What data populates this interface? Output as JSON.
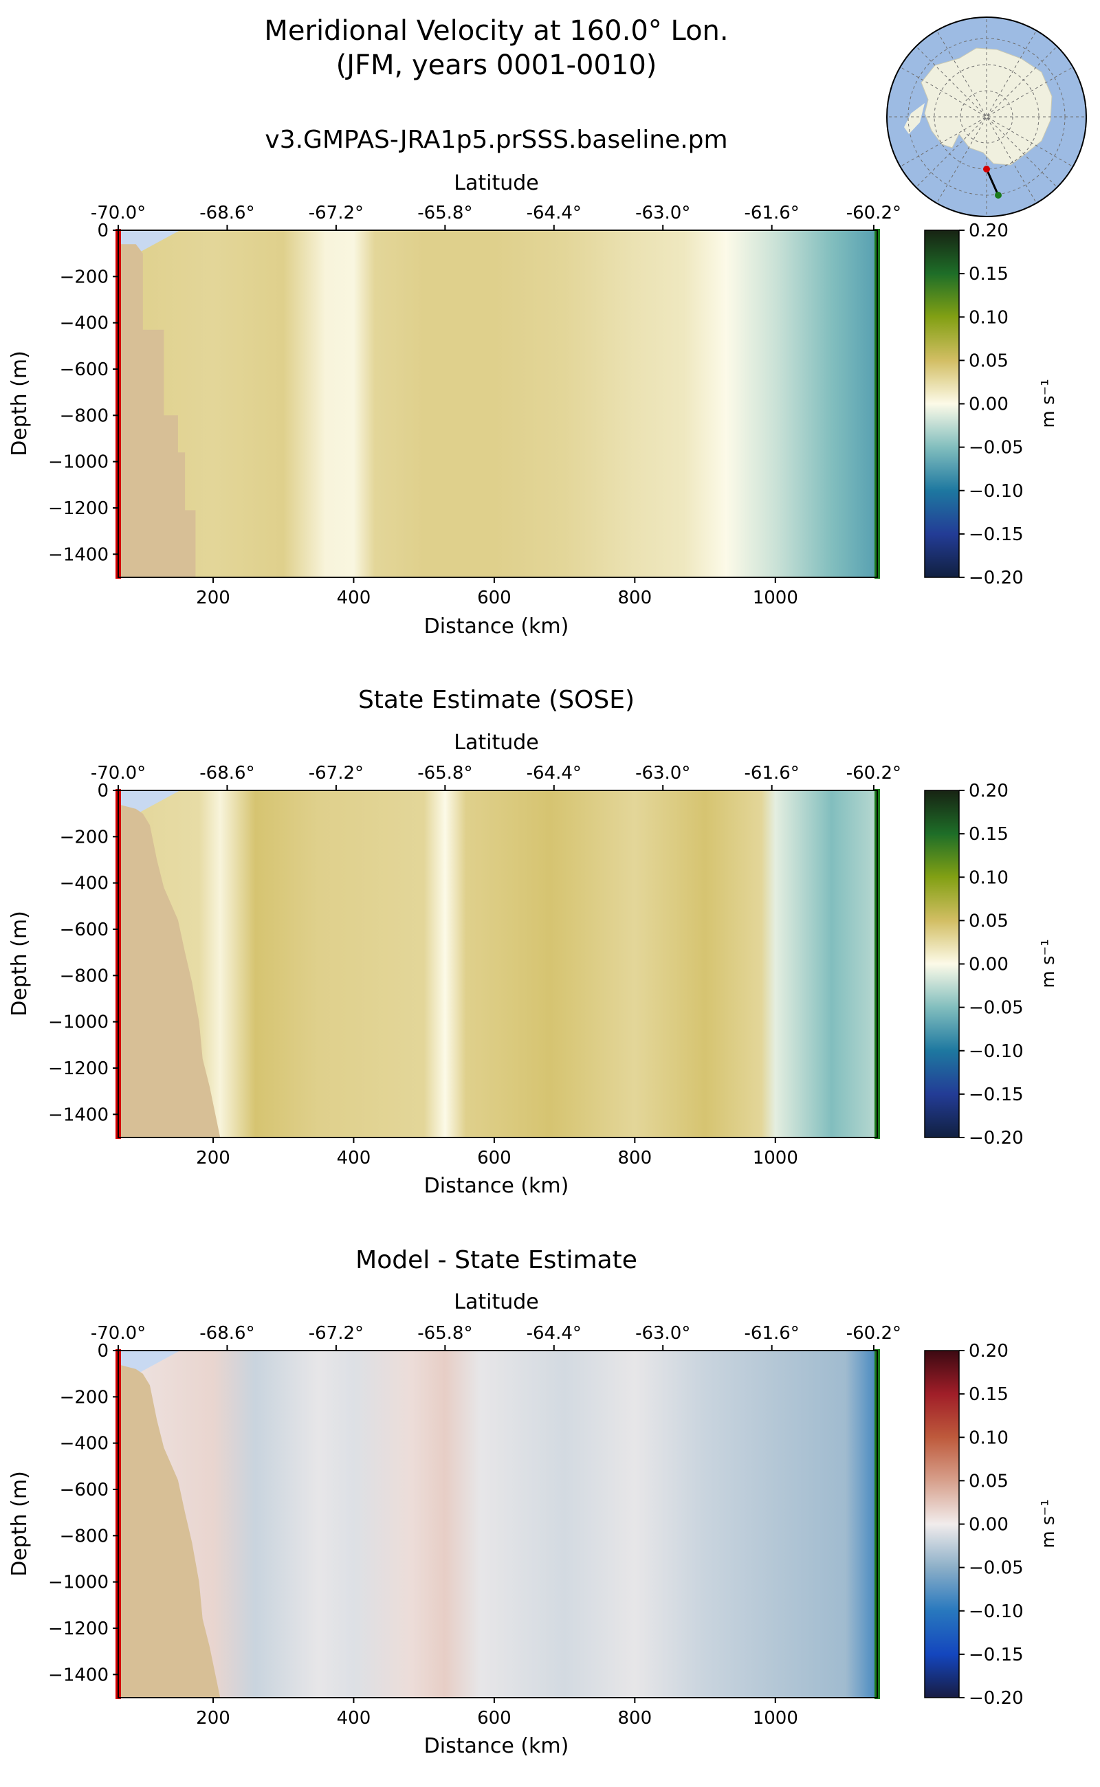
{
  "figure": {
    "title_line1": "Meridional Velocity at 160.0° Lon.",
    "title_line2": "(JFM, years 0001-0010)"
  },
  "colors": {
    "land": "#d7bf96",
    "ice": "#c8d9f1",
    "start_marker": "#d40000",
    "end_marker": "#1b7a1b",
    "ocean_map": "#9dbbe3",
    "continent_map": "#f0f0df"
  },
  "inset_map": {
    "description_icon": "antarctica-polar-map-icon",
    "section_start_color": "#d40000",
    "section_end_color": "#1b7a1b"
  },
  "chart_data": [
    {
      "type": "heatmap",
      "title": "v3.GMPAS-JRA1p5.prSSS.baseline.pm",
      "xlabel": "Distance (km)",
      "ylabel": "Depth (m)",
      "top_xlabel": "Latitude",
      "xlim": [
        65,
        1145
      ],
      "ylim": [
        -1500,
        0
      ],
      "x_ticks": [
        200,
        400,
        600,
        800,
        1000
      ],
      "y_ticks": [
        0,
        -200,
        -400,
        -600,
        -800,
        -1000,
        -1200,
        -1400
      ],
      "y_tick_labels": [
        "0",
        "−200",
        "−400",
        "−600",
        "−800",
        "−1000",
        "−1200",
        "−1400"
      ],
      "top_ticks_km": [
        65,
        220,
        375,
        530,
        685,
        840,
        995,
        1140
      ],
      "top_tick_labels": [
        "-70.0°",
        "-68.6°",
        "-67.2°",
        "-65.8°",
        "-64.4°",
        "-63.0°",
        "-61.6°",
        "-60.2°"
      ],
      "colorbar": {
        "label": "m s⁻¹",
        "range": [
          -0.2,
          0.2
        ],
        "ticks": [
          "0.20",
          "0.15",
          "0.10",
          "0.05",
          "0.00",
          "−0.05",
          "−0.10",
          "−0.15",
          "−0.20"
        ],
        "colormap": "delta"
      },
      "field_profile": {
        "km": [
          65,
          200,
          300,
          360,
          400,
          430,
          500,
          600,
          700,
          800,
          870,
          930,
          1000,
          1080,
          1140
        ],
        "velocity": [
          0.035,
          0.03,
          0.035,
          0.005,
          0.003,
          0.03,
          0.035,
          0.035,
          0.03,
          0.02,
          0.015,
          0.0,
          -0.02,
          -0.05,
          -0.07
        ]
      },
      "bathymetry": {
        "km": [
          65,
          90,
          100,
          100,
          130,
          130,
          150,
          150,
          160,
          160,
          175,
          175
        ],
        "depth": [
          -60,
          -60,
          -100,
          -430,
          -430,
          -800,
          -800,
          -960,
          -960,
          -1210,
          -1210,
          -1500
        ]
      }
    },
    {
      "type": "heatmap",
      "title": "State Estimate (SOSE)",
      "xlabel": "Distance (km)",
      "ylabel": "Depth (m)",
      "top_xlabel": "Latitude",
      "xlim": [
        65,
        1145
      ],
      "ylim": [
        -1500,
        0
      ],
      "x_ticks": [
        200,
        400,
        600,
        800,
        1000
      ],
      "y_ticks": [
        0,
        -200,
        -400,
        -600,
        -800,
        -1000,
        -1200,
        -1400
      ],
      "y_tick_labels": [
        "0",
        "−200",
        "−400",
        "−600",
        "−800",
        "−1000",
        "−1200",
        "−1400"
      ],
      "top_ticks_km": [
        65,
        220,
        375,
        530,
        685,
        840,
        995,
        1140
      ],
      "top_tick_labels": [
        "-70.0°",
        "-68.6°",
        "-67.2°",
        "-65.8°",
        "-64.4°",
        "-63.0°",
        "-61.6°",
        "-60.2°"
      ],
      "colorbar": {
        "label": "m s⁻¹",
        "range": [
          -0.2,
          0.2
        ],
        "ticks": [
          "0.20",
          "0.15",
          "0.10",
          "0.05",
          "0.00",
          "−0.05",
          "−0.10",
          "−0.15",
          "−0.20"
        ],
        "colormap": "delta"
      },
      "field_profile": {
        "km": [
          65,
          180,
          210,
          260,
          350,
          500,
          530,
          560,
          680,
          800,
          900,
          980,
          1000,
          1080,
          1140
        ],
        "velocity": [
          0.03,
          0.025,
          0.005,
          0.045,
          0.035,
          0.03,
          0.0,
          0.035,
          0.045,
          0.03,
          0.045,
          0.03,
          -0.01,
          -0.05,
          -0.03
        ]
      },
      "bathymetry": {
        "km": [
          65,
          90,
          100,
          110,
          120,
          130,
          150,
          160,
          170,
          180,
          185,
          195,
          210
        ],
        "depth": [
          -60,
          -80,
          -100,
          -150,
          -300,
          -420,
          -560,
          -700,
          -830,
          -1000,
          -1160,
          -1280,
          -1500
        ]
      }
    },
    {
      "type": "heatmap",
      "title": "Model - State Estimate",
      "xlabel": "Distance (km)",
      "ylabel": "Depth (m)",
      "top_xlabel": "Latitude",
      "xlim": [
        65,
        1145
      ],
      "ylim": [
        -1500,
        0
      ],
      "x_ticks": [
        200,
        400,
        600,
        800,
        1000
      ],
      "y_ticks": [
        0,
        -200,
        -400,
        -600,
        -800,
        -1000,
        -1200,
        -1400
      ],
      "y_tick_labels": [
        "0",
        "−200",
        "−400",
        "−600",
        "−800",
        "−1000",
        "−1200",
        "−1400"
      ],
      "top_ticks_km": [
        65,
        220,
        375,
        530,
        685,
        840,
        995,
        1140
      ],
      "top_tick_labels": [
        "-70.0°",
        "-68.6°",
        "-67.2°",
        "-65.8°",
        "-64.4°",
        "-63.0°",
        "-61.6°",
        "-60.2°"
      ],
      "colorbar": {
        "label": "m s⁻¹",
        "range": [
          -0.2,
          0.2
        ],
        "ticks": [
          "0.20",
          "0.15",
          "0.10",
          "0.05",
          "0.00",
          "−0.05",
          "−0.10",
          "−0.15",
          "−0.20"
        ],
        "colormap": "balance"
      },
      "field_profile": {
        "km": [
          65,
          200,
          260,
          350,
          400,
          480,
          530,
          580,
          700,
          800,
          900,
          1000,
          1100,
          1140
        ],
        "velocity": [
          0.005,
          0.015,
          -0.02,
          -0.005,
          -0.01,
          0.01,
          0.02,
          -0.005,
          -0.015,
          -0.005,
          -0.02,
          -0.03,
          -0.04,
          -0.08
        ]
      },
      "bathymetry": {
        "km": [
          65,
          90,
          100,
          110,
          120,
          130,
          150,
          160,
          170,
          180,
          185,
          195,
          210
        ],
        "depth": [
          -60,
          -80,
          -100,
          -150,
          -300,
          -420,
          -560,
          -700,
          -830,
          -1000,
          -1160,
          -1280,
          -1500
        ]
      }
    }
  ]
}
